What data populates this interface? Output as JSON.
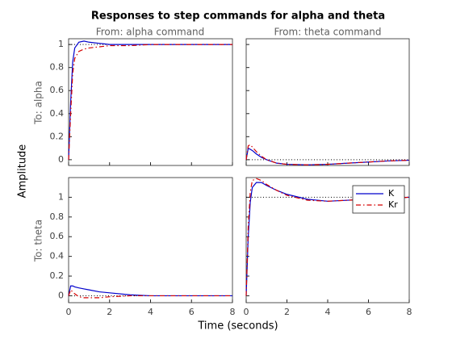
{
  "figure": {
    "title": "Responses to step commands for alpha and theta",
    "xlabel": "Time (seconds)",
    "ylabel": "Amplitude",
    "column_titles": [
      "From: alpha command",
      "From: theta command"
    ],
    "row_titles": [
      "To: alpha",
      "To: theta"
    ]
  },
  "chart_data": [
    {
      "type": "line",
      "x": [
        0,
        0.1,
        0.2,
        0.3,
        0.5,
        0.75,
        1,
        1.5,
        2,
        3,
        4,
        5,
        6,
        7,
        8
      ],
      "xlim": [
        0,
        8
      ],
      "xticks": [
        0,
        2,
        4,
        6,
        8
      ],
      "ylim": [
        -0.05,
        1.05
      ],
      "yticks": [
        0,
        0.2,
        0.4,
        0.6,
        0.8,
        1
      ],
      "reference": 1,
      "series": [
        {
          "color": "#0000cc",
          "values": [
            0,
            0.5,
            0.85,
            0.97,
            1.02,
            1.03,
            1.02,
            1.01,
            1.0,
            1.0,
            1.0,
            1.0,
            1.0,
            1.0,
            1.0
          ]
        },
        {
          "color": "#d40000",
          "values": [
            0,
            0.4,
            0.75,
            0.88,
            0.94,
            0.96,
            0.97,
            0.98,
            0.99,
            0.99,
            1.0,
            1.0,
            1.0,
            1.0,
            1.0
          ]
        }
      ]
    },
    {
      "type": "line",
      "x": [
        0,
        0.1,
        0.2,
        0.3,
        0.5,
        0.75,
        1,
        1.5,
        2,
        3,
        4,
        5,
        6,
        7,
        8
      ],
      "xlim": [
        0,
        8
      ],
      "xticks": [
        0,
        2,
        4,
        6,
        8
      ],
      "ylim": [
        -0.05,
        1.05
      ],
      "yticks": [
        0,
        0.2,
        0.4,
        0.6,
        0.8,
        1
      ],
      "reference": 0,
      "series": [
        {
          "color": "#0000cc",
          "values": [
            0,
            0.1,
            0.09,
            0.08,
            0.05,
            0.02,
            0,
            -0.03,
            -0.04,
            -0.045,
            -0.04,
            -0.03,
            -0.02,
            -0.01,
            -0.005
          ]
        },
        {
          "color": "#d40000",
          "values": [
            0,
            0.12,
            0.13,
            0.11,
            0.07,
            0.03,
            0,
            -0.03,
            -0.04,
            -0.045,
            -0.04,
            -0.03,
            -0.02,
            -0.01,
            -0.005
          ]
        }
      ]
    },
    {
      "type": "line",
      "x": [
        0,
        0.1,
        0.2,
        0.3,
        0.5,
        0.75,
        1,
        1.5,
        2,
        3,
        4,
        5,
        6,
        7,
        8
      ],
      "xlim": [
        0,
        8
      ],
      "xticks": [
        0,
        2,
        4,
        6,
        8
      ],
      "ylim": [
        -0.07,
        1.2
      ],
      "yticks": [
        0,
        0.2,
        0.4,
        0.6,
        0.8,
        1
      ],
      "reference": 0,
      "series": [
        {
          "color": "#0000cc",
          "values": [
            0,
            0.1,
            0.1,
            0.09,
            0.08,
            0.07,
            0.06,
            0.04,
            0.03,
            0.01,
            0,
            0,
            0,
            0,
            0
          ]
        },
        {
          "color": "#d40000",
          "values": [
            0,
            0.06,
            0.04,
            0.02,
            -0.01,
            -0.02,
            -0.02,
            -0.02,
            -0.01,
            0,
            0,
            0,
            0,
            0,
            0
          ]
        }
      ]
    },
    {
      "type": "line",
      "x": [
        0,
        0.1,
        0.2,
        0.3,
        0.5,
        0.75,
        1,
        1.5,
        2,
        3,
        4,
        5,
        6,
        7,
        8
      ],
      "xlim": [
        0,
        8
      ],
      "xticks": [
        0,
        2,
        4,
        6,
        8
      ],
      "ylim": [
        -0.07,
        1.2
      ],
      "yticks": [
        0,
        0.2,
        0.4,
        0.6,
        0.8,
        1
      ],
      "reference": 1,
      "legend": "northeast",
      "series": [
        {
          "name": "K",
          "color": "#0000cc",
          "values": [
            0,
            0.6,
            0.95,
            1.1,
            1.15,
            1.15,
            1.12,
            1.07,
            1.03,
            0.98,
            0.96,
            0.97,
            0.98,
            0.99,
            1.0
          ]
        },
        {
          "name": "Kr",
          "color": "#d40000",
          "values": [
            0,
            0.7,
            1.05,
            1.17,
            1.19,
            1.17,
            1.13,
            1.07,
            1.02,
            0.97,
            0.96,
            0.97,
            0.98,
            0.99,
            1.0
          ]
        }
      ]
    }
  ]
}
